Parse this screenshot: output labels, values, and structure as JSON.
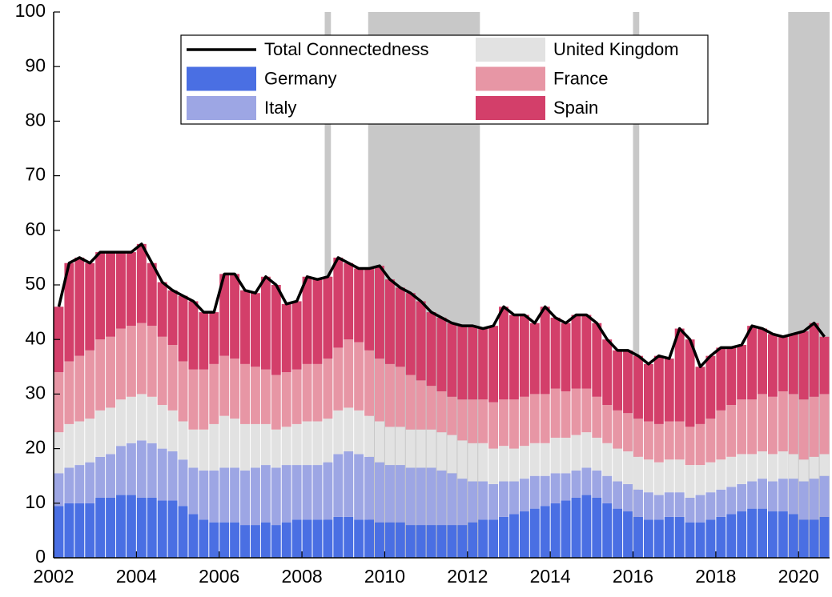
{
  "chart_data": {
    "type": "stacked-bar-line",
    "x": [
      2002,
      2002.25,
      2002.5,
      2002.75,
      2003,
      2003.25,
      2003.5,
      2003.75,
      2004,
      2004.25,
      2004.5,
      2004.75,
      2005,
      2005.25,
      2005.5,
      2005.75,
      2006,
      2006.25,
      2006.5,
      2006.75,
      2007,
      2007.25,
      2007.5,
      2007.75,
      2008,
      2008.25,
      2008.5,
      2008.75,
      2009,
      2009.25,
      2009.5,
      2009.75,
      2010,
      2010.25,
      2010.5,
      2010.75,
      2011,
      2011.25,
      2011.5,
      2011.75,
      2012,
      2012.25,
      2012.5,
      2012.75,
      2013,
      2013.25,
      2013.5,
      2013.75,
      2014,
      2014.25,
      2014.5,
      2014.75,
      2015,
      2015.25,
      2015.5,
      2015.75,
      2016,
      2016.25,
      2016.5,
      2016.75,
      2017,
      2017.25,
      2017.5,
      2017.75,
      2018,
      2018.25,
      2018.5,
      2018.75,
      2019,
      2019.25,
      2019.5,
      2019.75,
      2020,
      2020.25,
      2020.5
    ],
    "series": [
      {
        "name": "Total Connectedness",
        "type": "line",
        "color": "#000000",
        "values": [
          46,
          54,
          55,
          54,
          56,
          56,
          56,
          56,
          57.5,
          54,
          50.5,
          49,
          48,
          47,
          45,
          45,
          52,
          52,
          49,
          48.5,
          51.5,
          50,
          46.5,
          47,
          51.5,
          51,
          51.5,
          55,
          54,
          53,
          53,
          53.5,
          51,
          49.5,
          48.5,
          47,
          45,
          44,
          43,
          42.5,
          42.5,
          42,
          42.5,
          46,
          44.5,
          44.5,
          43,
          46,
          44,
          43,
          44.5,
          44.5,
          43,
          40,
          38,
          38,
          37,
          35.5,
          37,
          36.5,
          42,
          40,
          35,
          37,
          38.5,
          38.5,
          39,
          42.5,
          42,
          41,
          40.5,
          41,
          41.5,
          43,
          40.5
        ]
      },
      {
        "name": "Germany",
        "type": "bar",
        "color": "#4a6fe3",
        "values": [
          9.5,
          10,
          10,
          10,
          11,
          11,
          11.5,
          11.5,
          11,
          11,
          10.5,
          10.5,
          9.5,
          8,
          7,
          6.5,
          6.5,
          6.5,
          6,
          6,
          6.5,
          6,
          6.5,
          7,
          7,
          7,
          7,
          7.5,
          7.5,
          7,
          7,
          6.5,
          6.5,
          6.5,
          6,
          6,
          6,
          6,
          6,
          6,
          6.5,
          7,
          7,
          7.5,
          8,
          8.5,
          9,
          9.5,
          10,
          10.5,
          11,
          11.5,
          11,
          10,
          9,
          8.5,
          7.5,
          7,
          7,
          7.5,
          7.5,
          6.5,
          6.5,
          7,
          7.5,
          8,
          8.5,
          9,
          9,
          8.5,
          8.5,
          8,
          7,
          7,
          7.5
        ]
      },
      {
        "name": "Italy",
        "type": "bar",
        "color": "#9da6e4",
        "values": [
          6,
          6.5,
          7,
          7.5,
          7.5,
          8,
          9,
          9.5,
          10.5,
          10,
          9.5,
          9,
          8.5,
          8.5,
          9,
          9.5,
          10,
          10,
          10,
          10.5,
          10.5,
          10.5,
          10.5,
          10,
          10,
          10,
          10.5,
          11.5,
          12,
          12,
          11.5,
          11,
          10.5,
          10.5,
          10.5,
          10.5,
          10.5,
          10,
          9.5,
          8.5,
          7.5,
          7,
          6.5,
          6.5,
          6,
          6,
          6,
          5.5,
          5.5,
          5,
          5,
          5,
          5,
          5,
          5,
          5,
          5,
          5,
          4.5,
          4.5,
          4.5,
          4.5,
          5,
          5,
          5,
          5,
          5,
          5,
          5.5,
          5.5,
          6,
          6.5,
          7,
          7.5,
          7.5
        ]
      },
      {
        "name": "United Kingdom",
        "type": "bar",
        "color": "#e2e2e2",
        "values": [
          7.5,
          8,
          8,
          8,
          8.5,
          8.5,
          8.5,
          8.5,
          8.5,
          8.5,
          8,
          7.5,
          7,
          7,
          7.5,
          8.5,
          9.5,
          9,
          8.5,
          8,
          7.5,
          7,
          7,
          7.5,
          8,
          8,
          8,
          8,
          8,
          8,
          7.5,
          7.5,
          7,
          7,
          7,
          7,
          7,
          7,
          7,
          7,
          7,
          7,
          6.5,
          6.5,
          6,
          6,
          6,
          6,
          6.5,
          6.5,
          6.5,
          6.5,
          6,
          6,
          6,
          6,
          6,
          6,
          6,
          6,
          6,
          6,
          5.5,
          5.5,
          5.5,
          5.5,
          5.5,
          5,
          5,
          5,
          5,
          4.5,
          4,
          4,
          4
        ]
      },
      {
        "name": "France",
        "type": "bar",
        "color": "#e796a5",
        "values": [
          11,
          11.5,
          12,
          12.5,
          13,
          13,
          13,
          13,
          13,
          13,
          12.5,
          12,
          11,
          11,
          11,
          11,
          11,
          11,
          11,
          10.5,
          10,
          10,
          10,
          10,
          10.5,
          10.5,
          11,
          11.5,
          12.5,
          12.5,
          12,
          11.5,
          11.5,
          11,
          10,
          9,
          8,
          7.5,
          7,
          7.5,
          8,
          8,
          8.5,
          8.5,
          9,
          9,
          9,
          9,
          9,
          8.5,
          8.5,
          8,
          7.5,
          7,
          7,
          7,
          7,
          7,
          7,
          7,
          7,
          7,
          7.5,
          8,
          9,
          9.5,
          10,
          10,
          10.5,
          10.5,
          11,
          11,
          11,
          11,
          11
        ]
      },
      {
        "name": "Spain",
        "type": "bar",
        "color": "#d33f6a",
        "values": [
          12,
          18,
          18,
          16,
          16,
          15.5,
          14,
          13.5,
          14.5,
          11.5,
          10,
          10,
          12,
          12.5,
          10.5,
          9.5,
          15,
          15.5,
          13.5,
          13.5,
          17,
          16.5,
          12.5,
          12.5,
          16,
          15.5,
          15,
          16.5,
          14,
          13.5,
          15,
          17,
          15.5,
          14.5,
          15,
          14.5,
          13.5,
          13.5,
          13.5,
          13.5,
          13.5,
          13,
          14,
          17,
          15.5,
          15,
          13,
          16,
          13,
          12.5,
          13.5,
          13.5,
          13.5,
          12,
          11,
          11.5,
          11.5,
          10.5,
          12.5,
          11.5,
          17,
          16,
          10.5,
          11.5,
          11.5,
          10.5,
          10,
          13.5,
          12,
          11.5,
          10,
          11,
          12.5,
          13.5,
          10.5
        ]
      }
    ],
    "shaded": [
      [
        2008.55,
        2008.7
      ],
      [
        2009.6,
        2012.3
      ],
      [
        2016.0,
        2016.15
      ],
      [
        2019.75,
        2020.75
      ]
    ],
    "shade_color": "#c8c8c8",
    "xlim": [
      2002,
      2020.75
    ],
    "xticks": [
      2002,
      2004,
      2006,
      2008,
      2010,
      2012,
      2014,
      2016,
      2018,
      2020
    ],
    "ylim": [
      0,
      100
    ],
    "yticks": [
      0,
      10,
      20,
      30,
      40,
      50,
      60,
      70,
      80,
      90,
      100
    ],
    "grid": false,
    "legend": "top-center"
  }
}
